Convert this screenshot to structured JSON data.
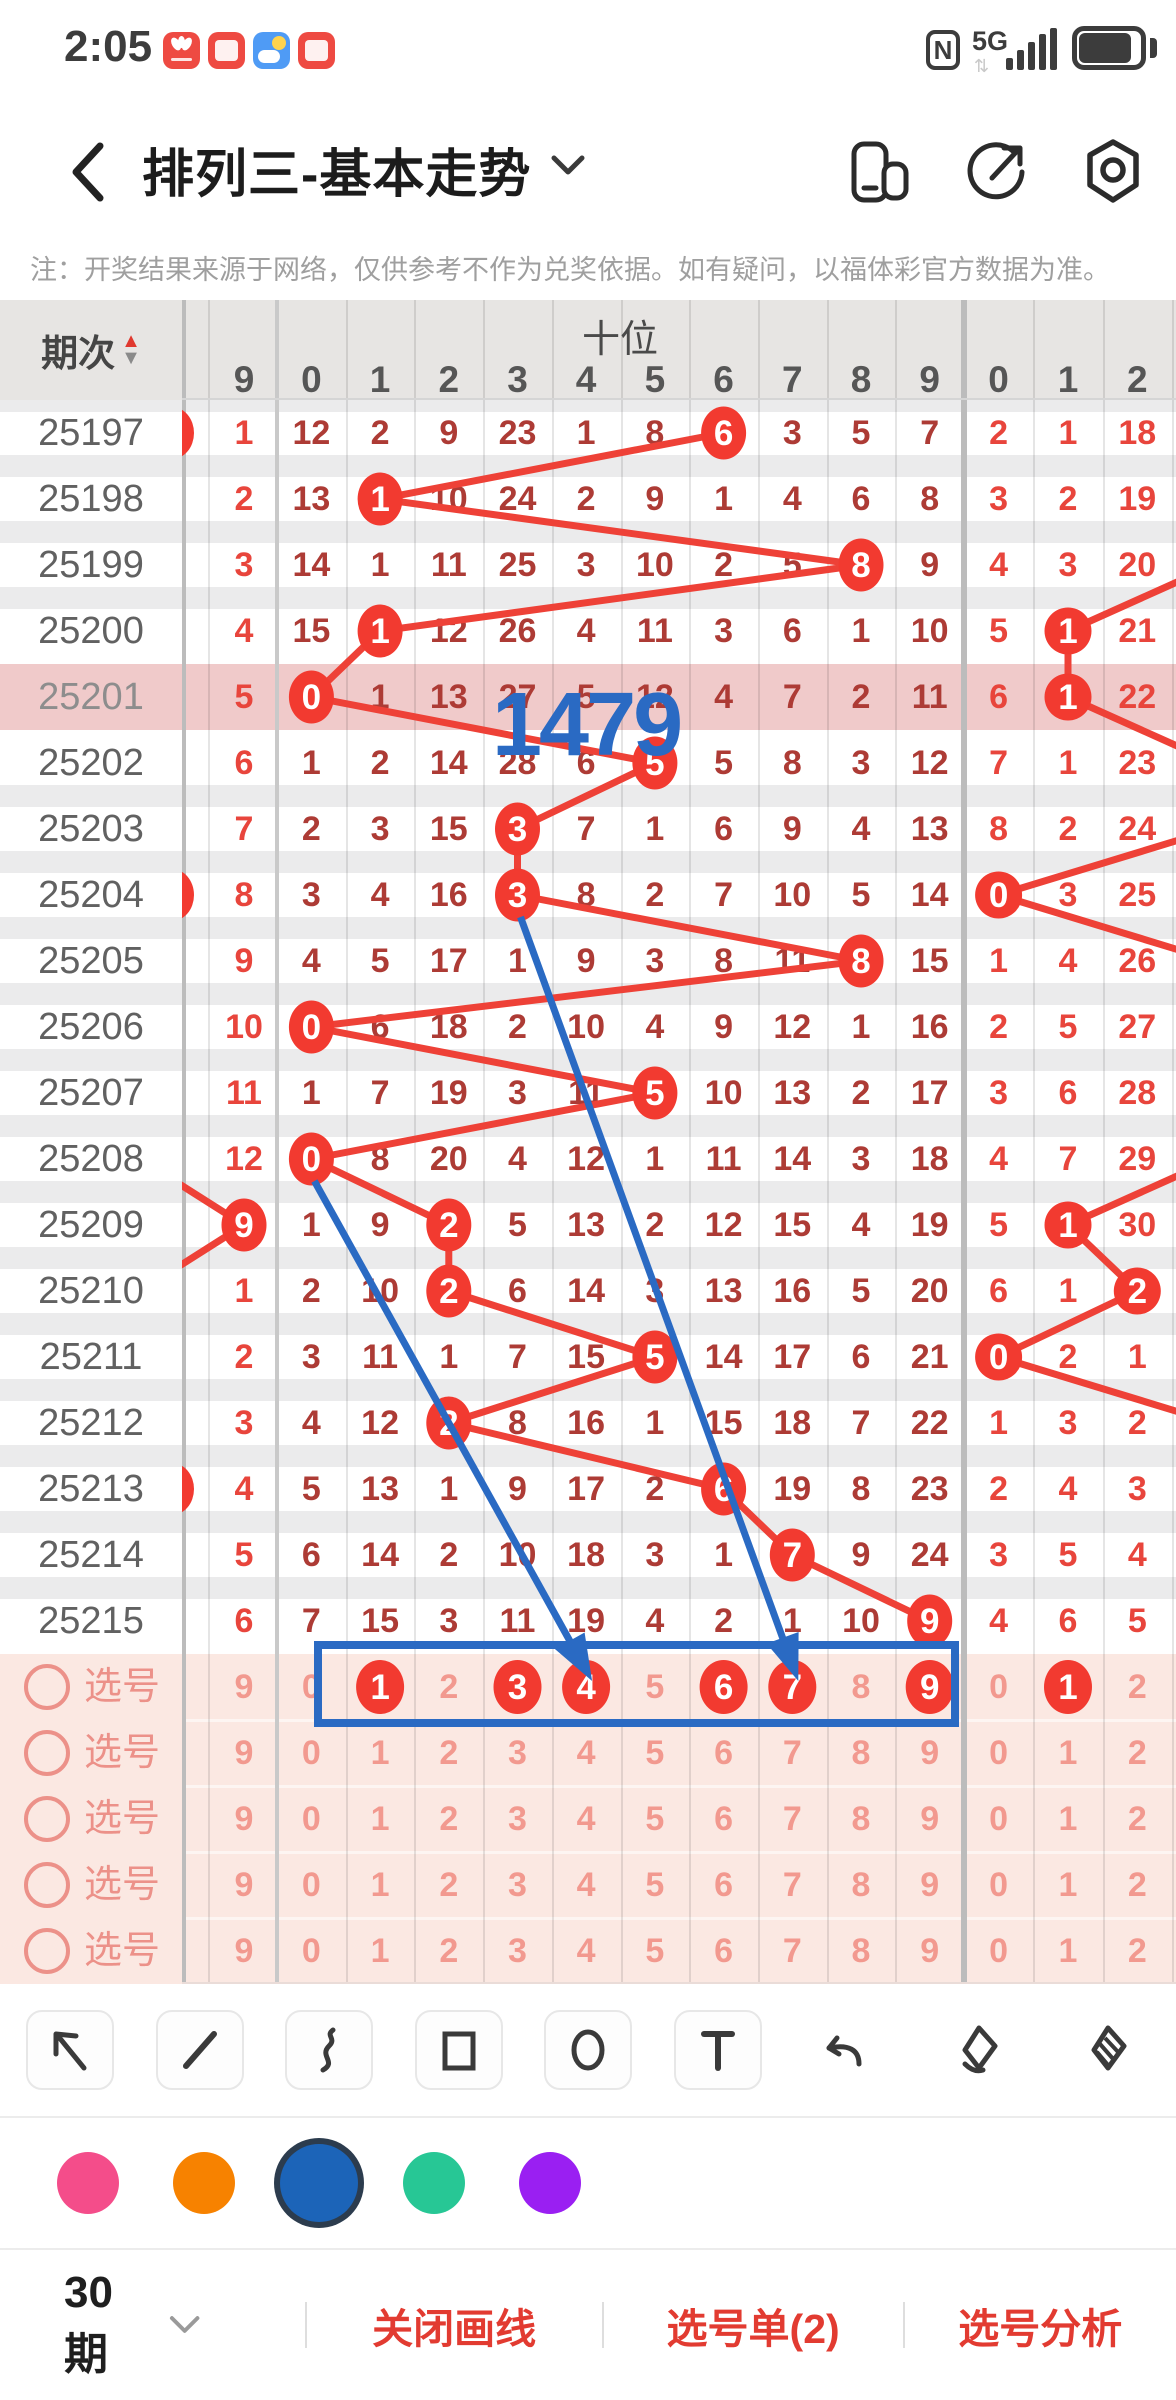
{
  "status_bar": {
    "time": "2:05",
    "network": "5G",
    "app_icons": [
      {
        "name": "huawei-app",
        "color": "#ee4a42"
      },
      {
        "name": "reader-app",
        "color": "#ee4a42"
      },
      {
        "name": "weather-app",
        "color": "#4f9bf5"
      },
      {
        "name": "reader-app-2",
        "color": "#ee4a42"
      }
    ]
  },
  "nav": {
    "title": "排列三-基本走势",
    "icons": [
      "floating-window",
      "share",
      "settings"
    ]
  },
  "notice": "注：开奖结果来源于网络，仅供参考不作为兑奖依据。如有疑问，以福体彩官方数据为准。",
  "chart": {
    "corner_label": "期次",
    "section_label": "十位",
    "left_col_header": "9",
    "digit_headers": [
      "0",
      "1",
      "2",
      "3",
      "4",
      "5",
      "6",
      "7",
      "8",
      "9"
    ],
    "right_headers": [
      "0",
      "1",
      "2"
    ],
    "colors": {
      "accent_red": "#f23a30",
      "line_red": "#ee4137",
      "dark_value": "#ad3b35",
      "light_value": "#e8453c",
      "pink_value": "#f2998f",
      "highlight_row": "#f0caca",
      "selection_bg": "#fbe8e2",
      "band": "#ebebec",
      "header_bg": "#e7e5e3"
    },
    "rows": [
      {
        "period": "25197",
        "left": "1",
        "cells": [
          "12",
          "2",
          "9",
          "23",
          "1",
          "8",
          "6",
          "3",
          "5",
          "7"
        ],
        "circled": 6,
        "right": [
          "2",
          "1",
          "18"
        ],
        "right_circled": null,
        "edge_mark": true,
        "highlight": false
      },
      {
        "period": "25198",
        "left": "2",
        "cells": [
          "13",
          "1",
          "10",
          "24",
          "2",
          "9",
          "1",
          "4",
          "6",
          "8"
        ],
        "circled": 1,
        "right": [
          "3",
          "2",
          "19"
        ],
        "right_circled": null,
        "edge_mark": false,
        "highlight": false
      },
      {
        "period": "25199",
        "left": "3",
        "cells": [
          "14",
          "1",
          "11",
          "25",
          "3",
          "10",
          "2",
          "5",
          "8",
          "9"
        ],
        "circled": 8,
        "right": [
          "4",
          "3",
          "20"
        ],
        "right_circled": null,
        "edge_mark": false,
        "highlight": false
      },
      {
        "period": "25200",
        "left": "4",
        "cells": [
          "15",
          "1",
          "12",
          "26",
          "4",
          "11",
          "3",
          "6",
          "1",
          "10"
        ],
        "circled": 1,
        "right": [
          "5",
          "1",
          "21"
        ],
        "right_circled": 1,
        "edge_mark": false,
        "highlight": false
      },
      {
        "period": "25201",
        "left": "5",
        "cells": [
          "0",
          "1",
          "13",
          "27",
          "5",
          "12",
          "4",
          "7",
          "2",
          "11"
        ],
        "circled": 0,
        "right": [
          "6",
          "1",
          "22"
        ],
        "right_circled": 1,
        "edge_mark": false,
        "highlight": true
      },
      {
        "period": "25202",
        "left": "6",
        "cells": [
          "1",
          "2",
          "14",
          "28",
          "6",
          "5",
          "5",
          "8",
          "3",
          "12"
        ],
        "circled": 5,
        "right": [
          "7",
          "1",
          "23"
        ],
        "right_circled": null,
        "edge_mark": false,
        "highlight": false
      },
      {
        "period": "25203",
        "left": "7",
        "cells": [
          "2",
          "3",
          "15",
          "3",
          "7",
          "1",
          "6",
          "9",
          "4",
          "13"
        ],
        "circled": 3,
        "right": [
          "8",
          "2",
          "24"
        ],
        "right_circled": null,
        "edge_mark": false,
        "highlight": false
      },
      {
        "period": "25204",
        "left": "8",
        "cells": [
          "3",
          "4",
          "16",
          "3",
          "8",
          "2",
          "7",
          "10",
          "5",
          "14"
        ],
        "circled": 3,
        "right": [
          "0",
          "3",
          "25"
        ],
        "right_circled": 0,
        "edge_mark": true,
        "highlight": false
      },
      {
        "period": "25205",
        "left": "9",
        "cells": [
          "4",
          "5",
          "17",
          "1",
          "9",
          "3",
          "8",
          "11",
          "8",
          "15"
        ],
        "circled": 8,
        "right": [
          "1",
          "4",
          "26"
        ],
        "right_circled": null,
        "edge_mark": false,
        "highlight": false
      },
      {
        "period": "25206",
        "left": "10",
        "cells": [
          "0",
          "6",
          "18",
          "2",
          "10",
          "4",
          "9",
          "12",
          "1",
          "16"
        ],
        "circled": 0,
        "right": [
          "2",
          "5",
          "27"
        ],
        "right_circled": null,
        "edge_mark": false,
        "highlight": false
      },
      {
        "period": "25207",
        "left": "11",
        "cells": [
          "1",
          "7",
          "19",
          "3",
          "11",
          "5",
          "10",
          "13",
          "2",
          "17"
        ],
        "circled": 5,
        "right": [
          "3",
          "6",
          "28"
        ],
        "right_circled": null,
        "edge_mark": false,
        "highlight": false
      },
      {
        "period": "25208",
        "left": "12",
        "cells": [
          "0",
          "8",
          "20",
          "4",
          "12",
          "1",
          "11",
          "14",
          "3",
          "18"
        ],
        "circled": 0,
        "right": [
          "4",
          "7",
          "29"
        ],
        "right_circled": null,
        "edge_mark": false,
        "highlight": false
      },
      {
        "period": "25209",
        "left": "9",
        "left_circled": true,
        "cells": [
          "1",
          "9",
          "2",
          "5",
          "13",
          "2",
          "12",
          "15",
          "4",
          "19"
        ],
        "circled": 2,
        "right": [
          "5",
          "1",
          "30"
        ],
        "right_circled": 1,
        "edge_mark": false,
        "highlight": false
      },
      {
        "period": "25210",
        "left": "1",
        "cells": [
          "2",
          "10",
          "2",
          "6",
          "14",
          "3",
          "13",
          "16",
          "5",
          "20"
        ],
        "circled": 2,
        "right": [
          "6",
          "1",
          "2"
        ],
        "right_circled": 2,
        "edge_mark": false,
        "highlight": false
      },
      {
        "period": "25211",
        "left": "2",
        "cells": [
          "3",
          "11",
          "1",
          "7",
          "15",
          "5",
          "14",
          "17",
          "6",
          "21"
        ],
        "circled": 5,
        "right": [
          "0",
          "2",
          "1"
        ],
        "right_circled": 0,
        "edge_mark": false,
        "highlight": false
      },
      {
        "period": "25212",
        "left": "3",
        "cells": [
          "4",
          "12",
          "2",
          "8",
          "16",
          "1",
          "15",
          "18",
          "7",
          "22"
        ],
        "circled": 2,
        "right": [
          "1",
          "3",
          "2"
        ],
        "right_circled": null,
        "edge_mark": false,
        "highlight": false
      },
      {
        "period": "25213",
        "left": "4",
        "cells": [
          "5",
          "13",
          "1",
          "9",
          "17",
          "2",
          "6",
          "19",
          "8",
          "23"
        ],
        "circled": 6,
        "right": [
          "2",
          "4",
          "3"
        ],
        "right_circled": null,
        "edge_mark": true,
        "highlight": false
      },
      {
        "period": "25214",
        "left": "5",
        "cells": [
          "6",
          "14",
          "2",
          "10",
          "18",
          "3",
          "1",
          "7",
          "9",
          "24"
        ],
        "circled": 7,
        "right": [
          "3",
          "5",
          "4"
        ],
        "right_circled": null,
        "edge_mark": false,
        "highlight": false
      },
      {
        "period": "25215",
        "left": "6",
        "cells": [
          "7",
          "15",
          "3",
          "11",
          "19",
          "4",
          "2",
          "1",
          "10",
          "9"
        ],
        "circled": 9,
        "right": [
          "4",
          "6",
          "5"
        ],
        "right_circled": null,
        "edge_mark": false,
        "highlight": false
      }
    ],
    "selection_rows": [
      {
        "label": "选号",
        "left": "9",
        "cells": [
          "0",
          "1",
          "2",
          "3",
          "4",
          "5",
          "6",
          "7",
          "8",
          "9"
        ],
        "selected": [
          1,
          3,
          4,
          6,
          7,
          9
        ],
        "right": [
          "0",
          "1",
          "2"
        ],
        "right_selected": [
          1
        ]
      },
      {
        "label": "选号",
        "left": "9",
        "cells": [
          "0",
          "1",
          "2",
          "3",
          "4",
          "5",
          "6",
          "7",
          "8",
          "9"
        ],
        "selected": [],
        "right": [
          "0",
          "1",
          "2"
        ],
        "right_selected": []
      },
      {
        "label": "选号",
        "left": "9",
        "cells": [
          "0",
          "1",
          "2",
          "3",
          "4",
          "5",
          "6",
          "7",
          "8",
          "9"
        ],
        "selected": [],
        "right": [
          "0",
          "1",
          "2"
        ],
        "right_selected": []
      },
      {
        "label": "选号",
        "left": "9",
        "cells": [
          "0",
          "1",
          "2",
          "3",
          "4",
          "5",
          "6",
          "7",
          "8",
          "9"
        ],
        "selected": [],
        "right": [
          "0",
          "1",
          "2"
        ],
        "right_selected": []
      },
      {
        "label": "选号",
        "left": "9",
        "cells": [
          "0",
          "1",
          "2",
          "3",
          "4",
          "5",
          "6",
          "7",
          "8",
          "9"
        ],
        "selected": [],
        "right": [
          "0",
          "1",
          "2"
        ],
        "right_selected": []
      }
    ]
  },
  "annotations": {
    "color": "#2a6ac3",
    "text": "1479",
    "arrows": [
      {
        "from_row": 7,
        "from_col": 3,
        "to_sel_col": 7
      },
      {
        "from_row": 11,
        "from_col": 0,
        "to_sel_col": 4
      }
    ],
    "box_around_selection": true
  },
  "toolbar": {
    "tools": [
      "arrow",
      "line",
      "curve",
      "rect",
      "ellipse",
      "text",
      "undo",
      "eraser",
      "clear"
    ]
  },
  "palette": {
    "colors": [
      "#f44d8a",
      "#f78200",
      "#1c64b8",
      "#27c795",
      "#9a1ff2"
    ],
    "selected_index": 2,
    "ring_color": "#2c3c4e"
  },
  "bottom_bar": {
    "period_selector": "30期",
    "actions": [
      "关闭画线",
      "选号单(2)",
      "选号分析"
    ]
  }
}
